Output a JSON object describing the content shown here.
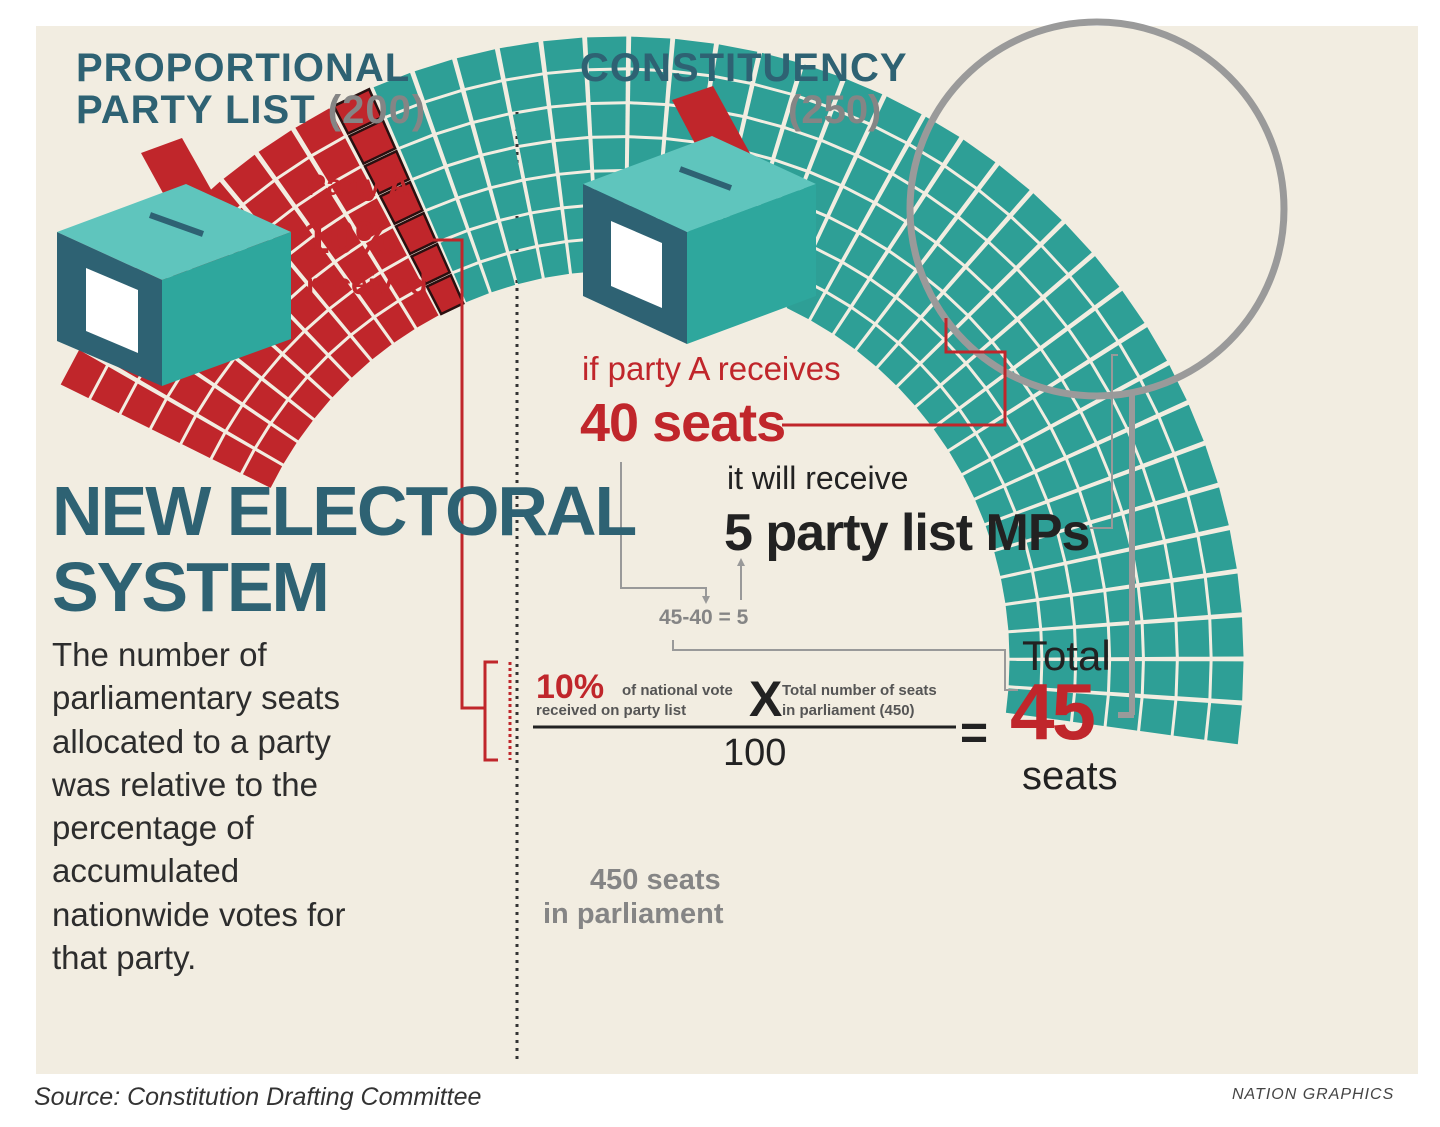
{
  "left": {
    "heading_line1": "PROPORTIONAL",
    "heading_line2": "PARTY LIST",
    "heading_count": "(200)",
    "party_label": "Party A",
    "party_percent": "10%",
    "party_received": "received",
    "title_line1": "NEW ELECTORAL",
    "title_line2": "SYSTEM",
    "description": [
      "The number of",
      "parliamentary seats",
      "allocated to a party",
      "was relative to the",
      "percentage of",
      "accumulated",
      "nationwide votes for",
      "that party."
    ]
  },
  "right": {
    "heading": "CONSTITUENCY",
    "heading_count": "(250)",
    "if_text": "if party A receives",
    "seats_text": "40 seats",
    "will_text": "it will receive",
    "mps_text": "5 party list MPs",
    "calc_text": "45-40 = 5"
  },
  "formula": {
    "pct": "10%",
    "pct_desc_1": "of national vote",
    "pct_desc_2": "received on party list",
    "times": "X",
    "total_desc_1": "Total number of seats",
    "total_desc_2": "in parliament (450)",
    "denominator": "100",
    "equals": "="
  },
  "result": {
    "total_label": "Total",
    "number": "45",
    "unit": "seats"
  },
  "parliament_label": [
    "450 seats",
    "in parliament"
  ],
  "footer": {
    "source": "Source: Constitution Drafting Committee",
    "credit": "NATION GRAPHICS"
  },
  "colors": {
    "teal": "#2e9f96",
    "dark_teal": "#2e6273",
    "red": "#c0262b",
    "background": "#f2ede1",
    "gray": "#858585"
  },
  "diagram_data": {
    "total_seats": 450,
    "party_list_seats": 200,
    "constituency_seats": 250,
    "party_a_vote_share_percent": 10,
    "party_a_constituency_seats": 40,
    "party_a_party_list_mps": 5,
    "party_a_total_seats": 45
  }
}
